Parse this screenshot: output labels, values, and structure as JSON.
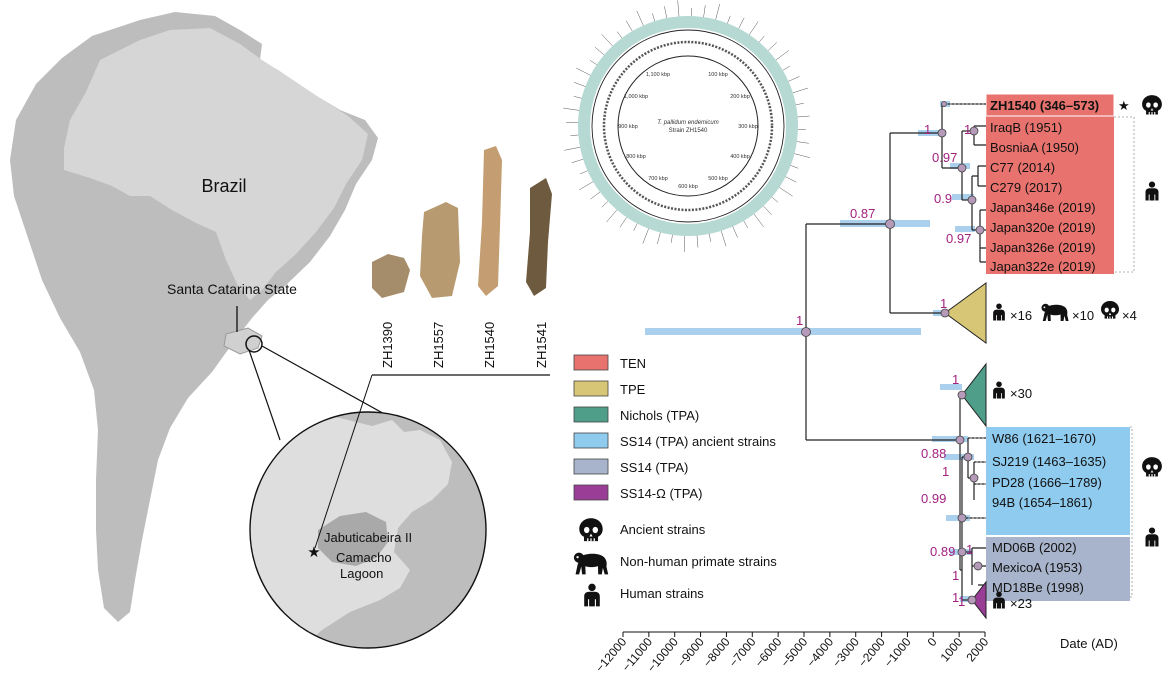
{
  "map": {
    "country": "Brazil",
    "state": "Santa Catarina State",
    "site": "Jabuticabeira II",
    "lagoon_line1": "Camacho",
    "lagoon_line2": "Lagoon"
  },
  "genome": {
    "center_line1": "T. pallidum endemicum",
    "center_line2": "Strain ZH1540",
    "kbp_labels": [
      "100 kbp",
      "200 kbp",
      "300 kbp",
      "400 kbp",
      "500 kbp",
      "600 kbp",
      "700 kbp",
      "800 kbp",
      "900 kbp",
      "1,000 kbp",
      "1,100 kbp"
    ]
  },
  "samples": [
    "ZH1390",
    "ZH1557",
    "ZH1540",
    "ZH1541"
  ],
  "tree": {
    "axis_label": "Date (AD)",
    "axis_ticks": [
      "−12000",
      "−11000",
      "−10000",
      "−9000",
      "−8000",
      "−7000",
      "−6000",
      "−5000",
      "−4000",
      "−3000",
      "−2000",
      "−1000",
      "0",
      "1000",
      "2000"
    ],
    "support": [
      "1",
      "0.87",
      "1",
      "1",
      "0.97",
      "0.9",
      "0.97",
      "1",
      "1",
      "0.88",
      "1",
      "0.99",
      "0.89",
      "1",
      "1",
      "1",
      "1"
    ],
    "ten_tips": [
      {
        "label": "ZH1540 (346–573)",
        "bold": true
      },
      {
        "label": "IraqB (1951)"
      },
      {
        "label": "BosniaA (1950)"
      },
      {
        "label": "C77 (2014)"
      },
      {
        "label": "C279 (2017)"
      },
      {
        "label": "Japan346e (2019)"
      },
      {
        "label": "Japan320e (2019)"
      },
      {
        "label": "Japan326e (2019)"
      },
      {
        "label": "Japan322e (2019)"
      }
    ],
    "ancient_tips": [
      "W86 (1621–1670)",
      "SJ219 (1463–1635)",
      "PD28 (1666–1789)",
      "94B (1654–1861)"
    ],
    "ss14_tips": [
      "MD06B (2002)",
      "MexicoA (1953)",
      "MD18Be (1998)"
    ],
    "collapsed": {
      "tpe": {
        "human": "×16",
        "primate": "×10",
        "ancient": "×4"
      },
      "nichols": {
        "human": "×30"
      },
      "omega": {
        "human": "×23"
      }
    }
  },
  "legend": {
    "items": [
      {
        "label": "TEN",
        "color": "#e8736e"
      },
      {
        "label": "TPE",
        "color": "#d8c677"
      },
      {
        "label": "Nichols (TPA)",
        "color": "#4e9e89"
      },
      {
        "label": "SS14 (TPA) ancient strains",
        "color": "#8ecbee"
      },
      {
        "label": "SS14 (TPA)",
        "color": "#a8b4cb"
      },
      {
        "label": "SS14-Ω (TPA)",
        "color": "#9a3d96"
      }
    ],
    "icons": [
      {
        "label": "Ancient strains",
        "icon": "skull-icon"
      },
      {
        "label": "Non-human primate strains",
        "icon": "primate-icon"
      },
      {
        "label": "Human strains",
        "icon": "human-icon"
      }
    ]
  },
  "colors": {
    "land": "#bdbdbd",
    "land_light": "#d6d6d6",
    "support_text": "#a3217f",
    "hpd_bar": "#9cc8ea",
    "node": "#b59aba"
  }
}
